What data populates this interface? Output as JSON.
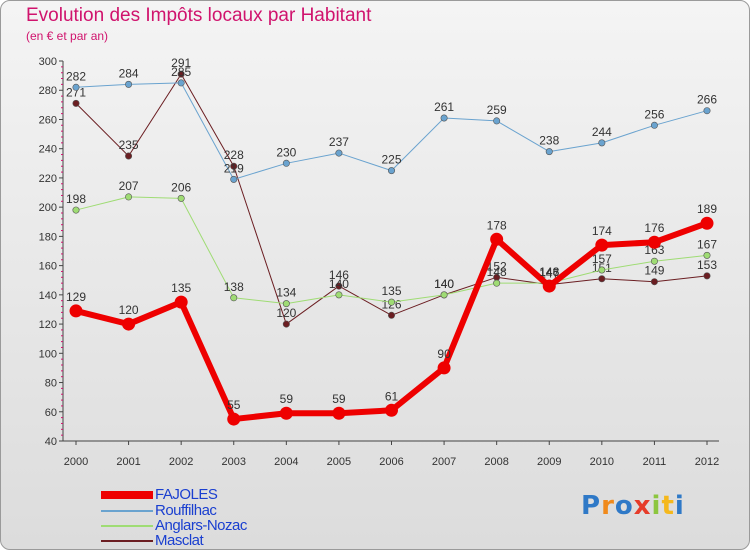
{
  "header": {
    "title": "Evolution des Impôts locaux par Habitant",
    "subtitle": "(en € et par an)"
  },
  "chart_data": {
    "type": "line",
    "title": "Evolution des Impôts locaux par Habitant",
    "subtitle": "(en € et par an)",
    "xlabel": "",
    "ylabel": "",
    "x": [
      "2000",
      "2001",
      "2002",
      "2003",
      "2004",
      "2005",
      "2006",
      "2007",
      "2008",
      "2009",
      "2010",
      "2011",
      "2012"
    ],
    "ylim": [
      40,
      300
    ],
    "yticks": [
      40,
      60,
      80,
      100,
      120,
      140,
      160,
      180,
      200,
      220,
      240,
      260,
      280,
      300
    ],
    "grid": false,
    "legend_position": "bottom-left",
    "series": [
      {
        "name": "Masclat",
        "color": "#6b1e22",
        "values": [
          271,
          235,
          291,
          228,
          120,
          146,
          126,
          140,
          152,
          147,
          151,
          149,
          153
        ]
      },
      {
        "name": "Anglars-Nozac",
        "color": "#9fdc74",
        "values": [
          198,
          207,
          206,
          138,
          134,
          140,
          135,
          140,
          148,
          148,
          157,
          163,
          167
        ]
      },
      {
        "name": "Rouffilhac",
        "color": "#6aa3cf",
        "values": [
          282,
          284,
          285,
          219,
          230,
          237,
          225,
          261,
          259,
          238,
          244,
          256,
          266
        ]
      },
      {
        "name": "FAJOLES",
        "color": "#ee0000",
        "values": [
          129,
          120,
          135,
          55,
          59,
          59,
          61,
          90,
          178,
          146,
          174,
          176,
          189
        ]
      }
    ]
  },
  "legend": {
    "items": [
      {
        "name": "FAJOLES",
        "color": "#ee0000"
      },
      {
        "name": "Rouffilhac",
        "color": "#6aa3cf"
      },
      {
        "name": "Anglars-Nozac",
        "color": "#9fdc74"
      },
      {
        "name": "Masclat",
        "color": "#6b1e22"
      }
    ]
  },
  "logo": {
    "text": "Proxiti",
    "colors": [
      "#2f79c7",
      "#f08a1c",
      "#2f79c7",
      "#e63c2a",
      "#8cc63f",
      "#f5b81c",
      "#2f79c7"
    ]
  }
}
